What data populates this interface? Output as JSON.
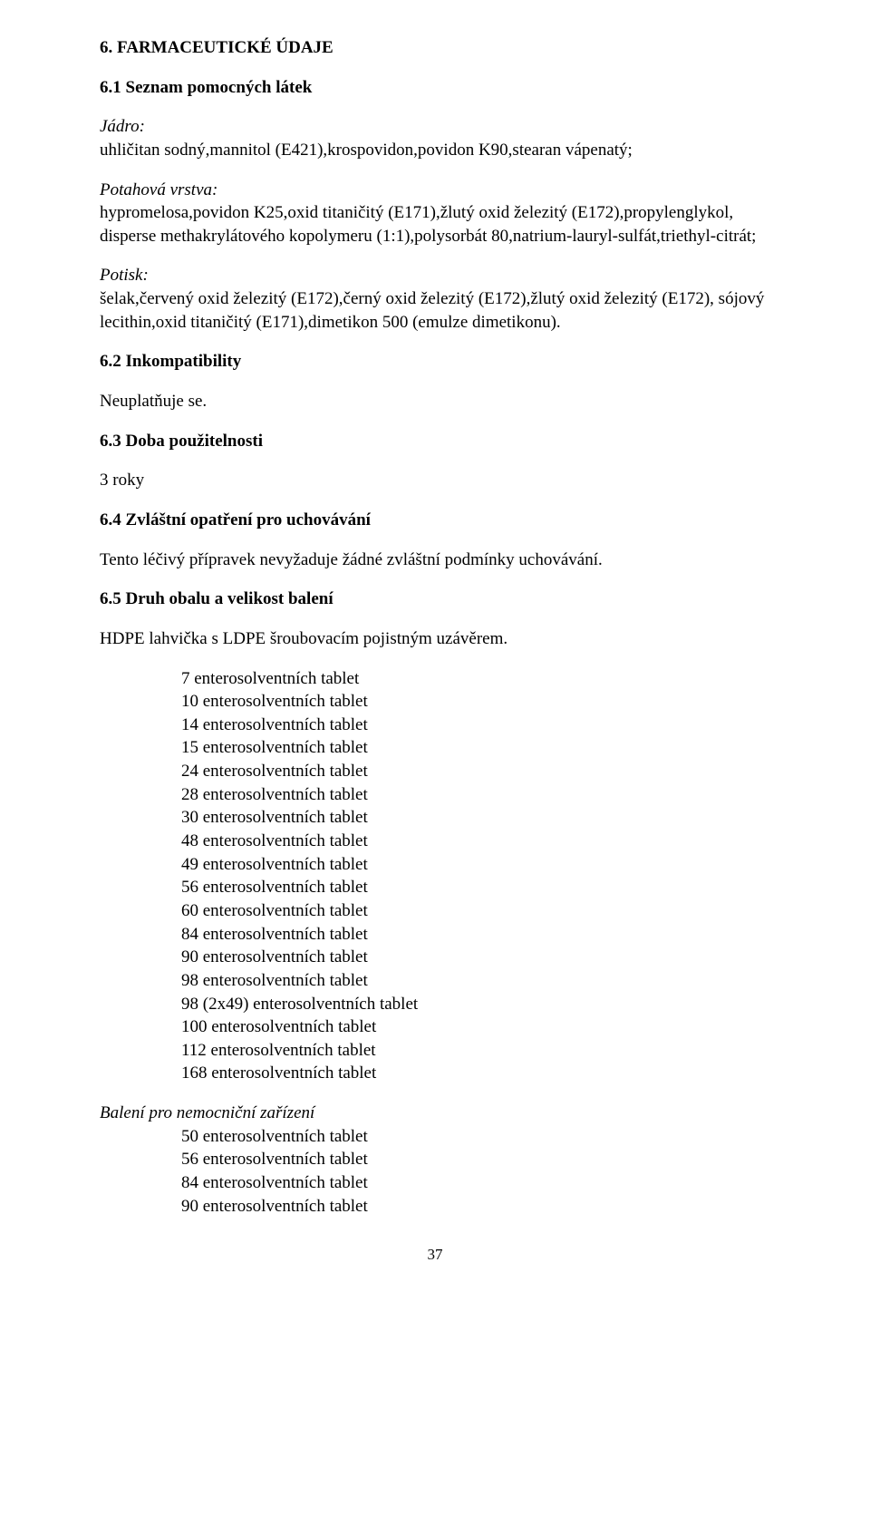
{
  "s6": {
    "title": "6. FARMACEUTICKÉ ÚDAJE",
    "s6_1": {
      "title": "6.1 Seznam pomocných látek",
      "core_label": "Jádro:",
      "core_text": "uhličitan sodný,mannitol (E421),krospovidon,povidon K90,stearan vápenatý;",
      "coat_label": "Potahová vrstva:",
      "coat_text": "hypromelosa,povidon K25,oxid titaničitý (E171),žlutý oxid železitý (E172),propylenglykol, disperse methakrylátového kopolymeru (1:1),polysorbát 80,natrium-lauryl-sulfát,triethyl-citrát;",
      "print_label": "Potisk:",
      "print_text": "šelak,červený oxid železitý (E172),černý oxid železitý (E172),žlutý oxid železitý (E172), sójový lecithin,oxid titaničitý (E171),dimetikon 500 (emulze dimetikonu)."
    },
    "s6_2": {
      "title": "6.2 Inkompatibility",
      "text": "Neuplatňuje se."
    },
    "s6_3": {
      "title": "6.3 Doba použitelnosti",
      "text": "3 roky"
    },
    "s6_4": {
      "title": "6.4 Zvláštní opatření pro uchovávání",
      "text": "Tento léčivý přípravek nevyžaduje žádné zvláštní podmínky uchovávání."
    },
    "s6_5": {
      "title": "6.5 Druh obalu a velikost balení",
      "text": "HDPE lahvička s LDPE šroubovacím pojistným uzávěrem.",
      "sizes": [
        "7 enterosolventních tablet",
        "10 enterosolventních tablet",
        "14 enterosolventních tablet",
        "15 enterosolventních tablet",
        "24 enterosolventních tablet",
        "28 enterosolventních tablet",
        "30 enterosolventních tablet",
        "48 enterosolventních tablet",
        "49 enterosolventních tablet",
        "56 enterosolventních tablet",
        "60 enterosolventních tablet",
        "84 enterosolventních tablet",
        "90 enterosolventních tablet",
        "98 enterosolventních tablet",
        "98 (2x49) enterosolventních tablet",
        "100 enterosolventních tablet",
        "112 enterosolventních tablet",
        "168 enterosolventních tablet"
      ],
      "hospital_label": "Balení pro nemocniční zařízení",
      "hospital_sizes": [
        "50 enterosolventních tablet",
        "56 enterosolventních tablet",
        "84 enterosolventních tablet",
        "90 enterosolventních tablet"
      ]
    }
  },
  "page_number": "37"
}
